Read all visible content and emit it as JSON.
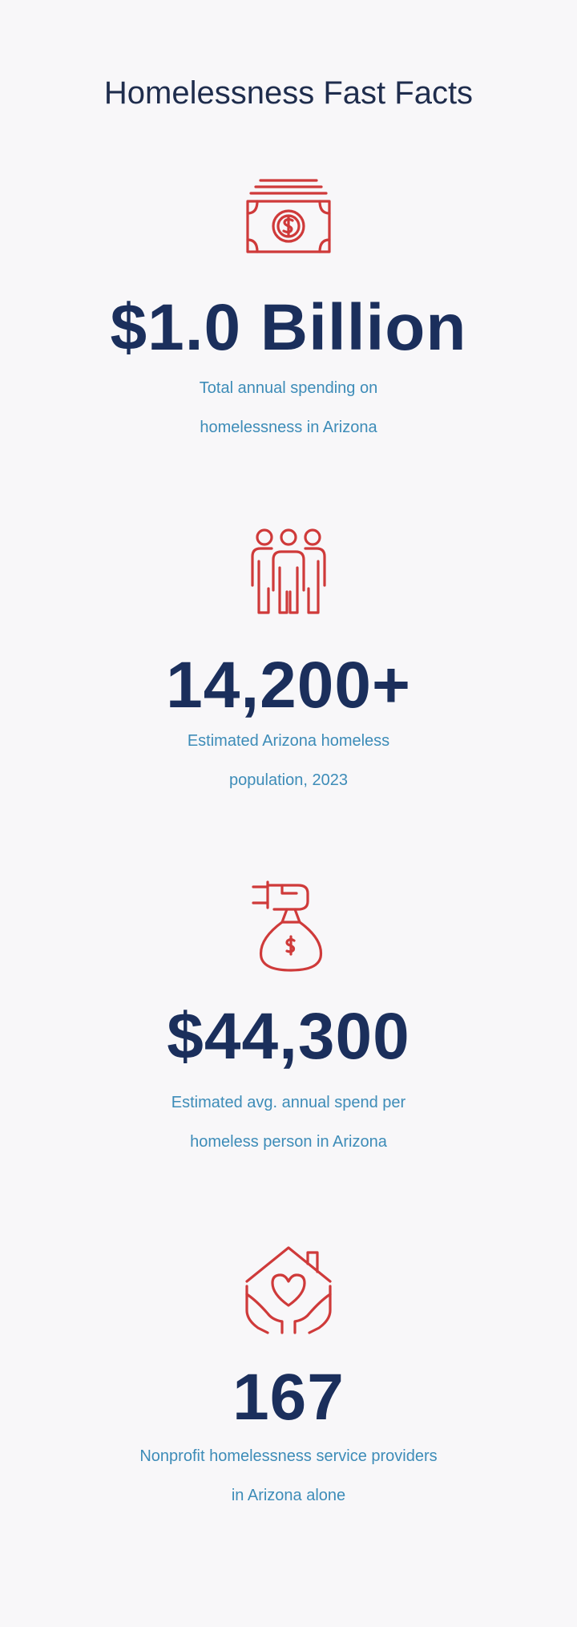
{
  "title": "Homelessness Fast Facts",
  "accent_color": "#cf3a3a",
  "stat_color": "#1b2f5c",
  "desc_color": "#3d8cb8",
  "facts": [
    {
      "icon": "money-bill-icon",
      "value": "$1.0 Billion",
      "desc_line1": "Total annual spending on",
      "desc_line2": "homelessness in Arizona"
    },
    {
      "icon": "people-group-icon",
      "value": "14,200+",
      "desc_line1": "Estimated Arizona homeless",
      "desc_line2": "population, 2023"
    },
    {
      "icon": "money-bag-hand-icon",
      "value": "$44,300",
      "desc_line1": "Estimated avg. annual spend per",
      "desc_line2": "homeless person in Arizona"
    },
    {
      "icon": "house-heart-hands-icon",
      "value": "167",
      "desc_line1": "Nonprofit homelessness service providers",
      "desc_line2": "in Arizona alone"
    }
  ]
}
